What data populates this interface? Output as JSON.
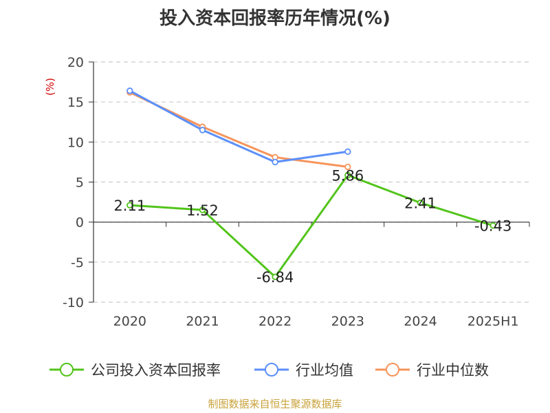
{
  "chart_data": {
    "type": "line",
    "title": "投入资本回报率历年情况(%)",
    "ylabel": "(%)",
    "categories": [
      "2020",
      "2021",
      "2022",
      "2023",
      "2024",
      "2025H1"
    ],
    "ylim": [
      -10,
      20
    ],
    "yticks": [
      20,
      15,
      10,
      5,
      0,
      -5,
      -10
    ],
    "grid": true,
    "legend_position": "bottom",
    "series": [
      {
        "name": "公司投入资本回报率",
        "color": "#52c41a",
        "values": [
          2.11,
          1.52,
          -6.84,
          5.86,
          2.41,
          -0.43
        ],
        "labels": [
          "2.11",
          "1.52",
          "-6.84",
          "5.86",
          "2.41",
          "-0.43"
        ]
      },
      {
        "name": "行业均值",
        "color": "#5b8ff9",
        "values": [
          16.4,
          11.5,
          7.5,
          8.8,
          null,
          null
        ]
      },
      {
        "name": "行业中位数",
        "color": "#f7945a",
        "values": [
          16.2,
          11.9,
          8.1,
          6.9,
          null,
          null
        ]
      }
    ]
  },
  "source": "制图数据来自恒生聚源数据库",
  "source_color": "#c8a23a"
}
